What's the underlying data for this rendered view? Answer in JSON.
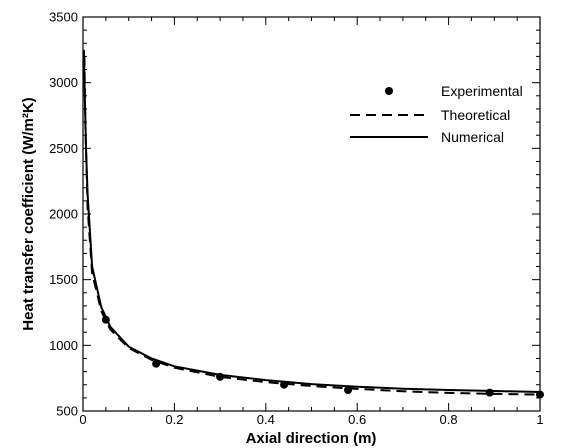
{
  "chart_data": {
    "type": "line",
    "xlabel": "Axial direction (m)",
    "ylabel": "Heat transfer coefficient (W/m²K)",
    "xlim": [
      0,
      1
    ],
    "ylim": [
      500,
      3500
    ],
    "x_ticks": [
      0,
      0.2,
      0.4,
      0.6,
      0.8,
      1
    ],
    "y_ticks": [
      500,
      1000,
      1500,
      2000,
      2500,
      3000,
      3500
    ],
    "x_tick_labels": [
      "0",
      "0.2",
      "0.4",
      "0.6",
      "0.8",
      "1"
    ],
    "y_tick_labels": [
      "500",
      "1000",
      "1500",
      "2000",
      "2500",
      "3000",
      "3500"
    ],
    "grid": false,
    "legend_position": "top-right",
    "series": [
      {
        "name": "Experimental",
        "style": "markers",
        "x": [
          0.05,
          0.16,
          0.3,
          0.44,
          0.58,
          0.89,
          1.0
        ],
        "y": [
          1195,
          860,
          760,
          700,
          660,
          640,
          625
        ]
      },
      {
        "name": "Theoretical",
        "style": "dashed",
        "x": [
          0.003,
          0.005,
          0.01,
          0.02,
          0.04,
          0.06,
          0.1,
          0.15,
          0.2,
          0.3,
          0.4,
          0.5,
          0.6,
          0.7,
          0.8,
          0.9,
          1.0
        ],
        "y": [
          3200,
          2700,
          2050,
          1550,
          1260,
          1120,
          980,
          890,
          830,
          760,
          720,
          690,
          668,
          650,
          638,
          630,
          625
        ]
      },
      {
        "name": "Numerical",
        "style": "solid",
        "x": [
          0.002,
          0.004,
          0.007,
          0.01,
          0.02,
          0.04,
          0.06,
          0.1,
          0.15,
          0.2,
          0.3,
          0.4,
          0.5,
          0.6,
          0.7,
          0.8,
          0.9,
          1.0
        ],
        "y": [
          3250,
          2900,
          2450,
          2150,
          1600,
          1290,
          1140,
          990,
          900,
          840,
          775,
          735,
          705,
          685,
          670,
          660,
          652,
          645
        ]
      }
    ]
  }
}
